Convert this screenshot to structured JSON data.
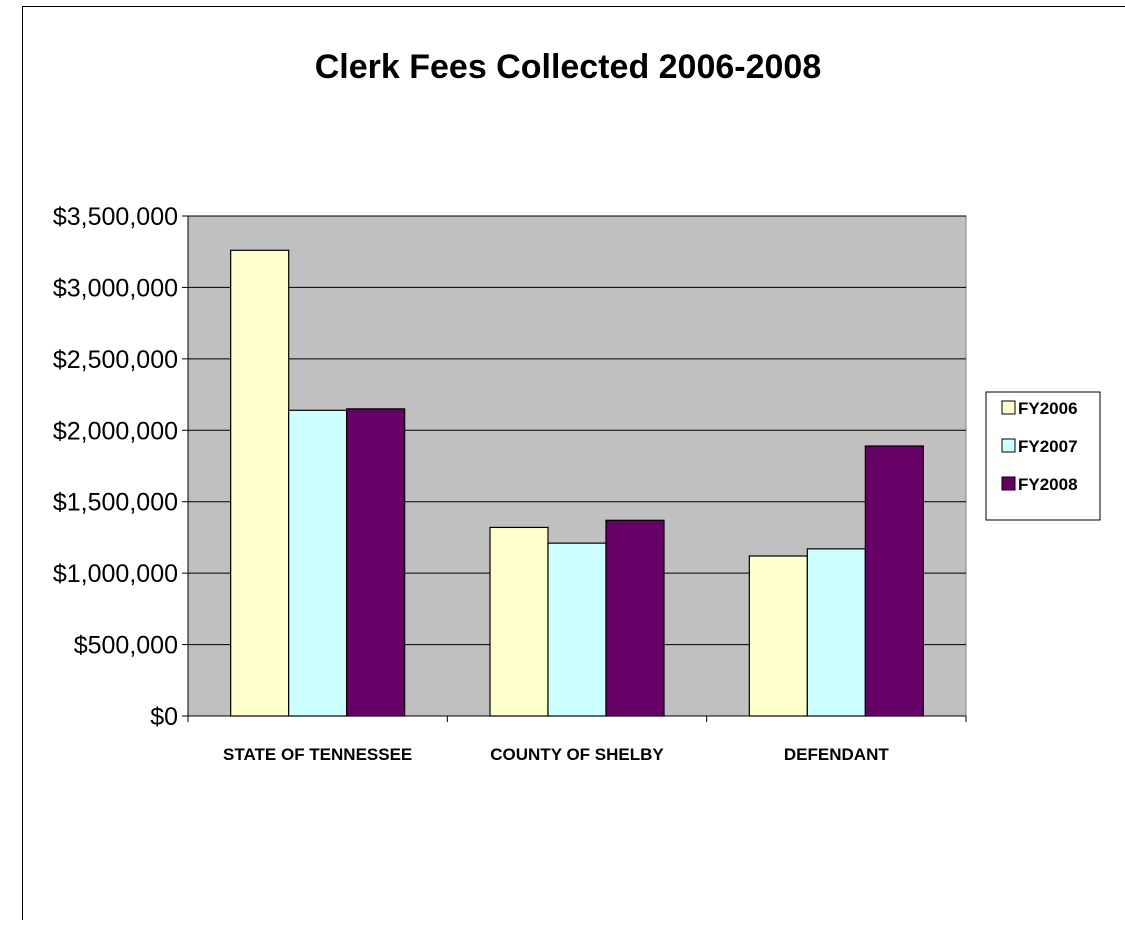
{
  "chart_data": {
    "type": "bar",
    "title": "Clerk Fees Collected 2006-2008",
    "xlabel": "",
    "ylabel": "",
    "categories": [
      "STATE OF TENNESSEE",
      "COUNTY OF SHELBY",
      "DEFENDANT"
    ],
    "series": [
      {
        "name": "FY2006",
        "color": "#FFFFCC",
        "values": [
          3260000,
          1320000,
          1120000
        ]
      },
      {
        "name": "FY2007",
        "color": "#CCFFFF",
        "values": [
          2140000,
          1210000,
          1170000
        ]
      },
      {
        "name": "FY2008",
        "color": "#660066",
        "values": [
          2150000,
          1370000,
          1890000
        ]
      }
    ],
    "ylim": [
      0,
      3500000
    ],
    "y_ticks": [
      0,
      500000,
      1000000,
      1500000,
      2000000,
      2500000,
      3000000,
      3500000
    ],
    "y_tick_labels": [
      "$0",
      "$500,000",
      "$1,000,000",
      "$1,500,000",
      "$2,000,000",
      "$2,500,000",
      "$3,000,000",
      "$3,500,000"
    ],
    "grid": true,
    "plot_background": "#C0C0C0",
    "legend_position": "right"
  }
}
